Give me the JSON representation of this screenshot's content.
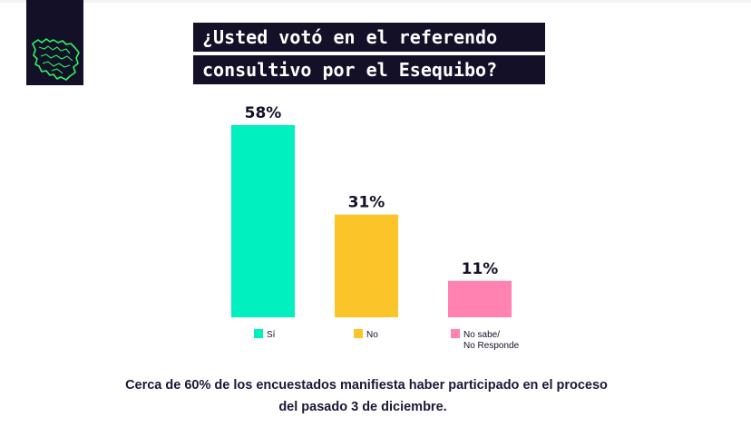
{
  "title": {
    "line1": "¿Usted votó en el referendo",
    "line2": "consultivo por el Esequibo?"
  },
  "logo": {
    "icon": "venezuela-map-icon",
    "color": "#2cf564"
  },
  "chart_data": {
    "type": "bar",
    "categories": [
      "Sí",
      "No",
      "No sabe/ No Responde"
    ],
    "legend": [
      {
        "lines": [
          "Sí"
        ]
      },
      {
        "lines": [
          "No"
        ]
      },
      {
        "lines": [
          "No sabe/",
          "No Responde"
        ]
      }
    ],
    "values": [
      58,
      31,
      11
    ],
    "value_labels": [
      "58%",
      "31%",
      "11%"
    ],
    "unit": "%",
    "colors": [
      "#00f0c0",
      "#fbc52a",
      "#ff82b0"
    ],
    "ylim": [
      0,
      60
    ],
    "grid": false,
    "legend_placement": "bottom"
  },
  "footer": {
    "line1": "Cerca de 60% de los encuestados manifiesta haber participado en el proceso",
    "line2": "del pasado 3 de diciembre."
  }
}
